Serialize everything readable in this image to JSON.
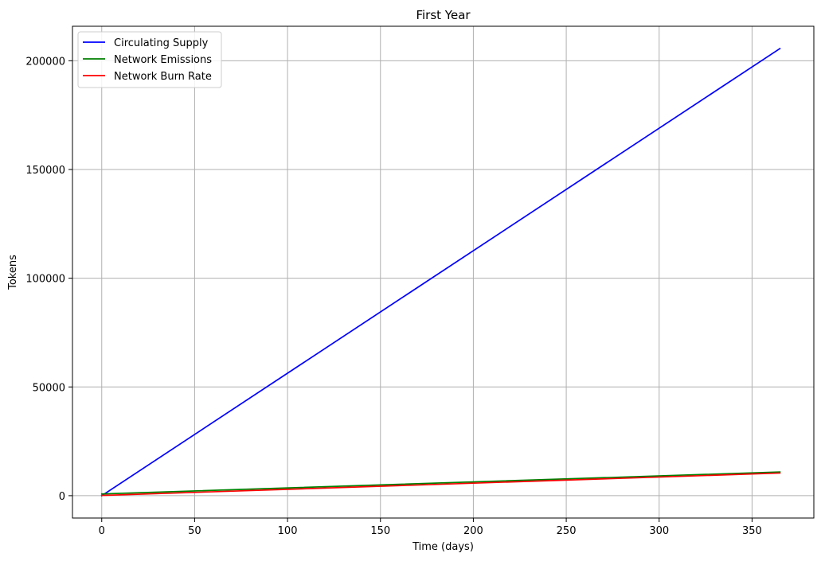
{
  "chart_data": {
    "type": "line",
    "title": "First Year",
    "xlabel": "Time (days)",
    "ylabel": "Tokens",
    "xlim": [
      -15.75,
      383.25
    ],
    "ylim": [
      -10280,
      215860
    ],
    "xticks": [
      0,
      50,
      100,
      150,
      200,
      250,
      300,
      350
    ],
    "xtick_labels": [
      "0",
      "50",
      "100",
      "150",
      "200",
      "250",
      "300",
      "350"
    ],
    "yticks": [
      0,
      50000,
      100000,
      150000,
      200000
    ],
    "ytick_labels": [
      "0",
      "50000",
      "100000",
      "150000",
      "200000"
    ],
    "grid": true,
    "legend_position": "top-left",
    "series": [
      {
        "name": "Circulating Supply",
        "color": "#0000ff",
        "x": [
          0,
          365
        ],
        "y": [
          0,
          205600
        ]
      },
      {
        "name": "Network Emissions",
        "color": "#008000",
        "x": [
          0,
          365
        ],
        "y": [
          800,
          10900
        ]
      },
      {
        "name": "Network Burn Rate",
        "color": "#ff0000",
        "x": [
          0,
          365
        ],
        "y": [
          100,
          10400
        ]
      }
    ]
  }
}
